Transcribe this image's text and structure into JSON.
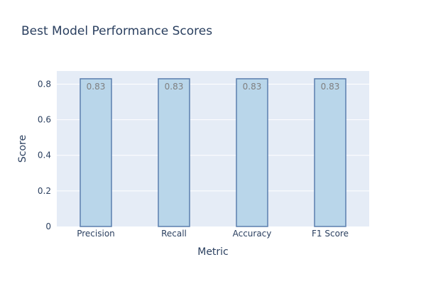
{
  "chart_data": {
    "type": "bar",
    "title": "Best Model Performance Scores",
    "xlabel": "Metric",
    "ylabel": "Score",
    "categories": [
      "Precision",
      "Recall",
      "Accuracy",
      "F1 Score"
    ],
    "values": [
      0.83,
      0.83,
      0.83,
      0.83
    ],
    "data_labels": [
      "0.83",
      "0.83",
      "0.83",
      "0.83"
    ],
    "ylim": [
      0,
      0.8736
    ],
    "yticks": [
      0,
      0.2,
      0.4,
      0.6,
      0.8
    ],
    "ytick_labels": [
      "0",
      "0.2",
      "0.4",
      "0.6",
      "0.8"
    ],
    "grid": true,
    "legend": "none",
    "colors": {
      "plot_background": "#e5ecf6",
      "bar_fill": "#b9d6ea",
      "bar_outline": "#5b7fae",
      "grid": "#ffffff",
      "text": "#2a3f5f",
      "data_label": "#7f7f7f"
    }
  }
}
